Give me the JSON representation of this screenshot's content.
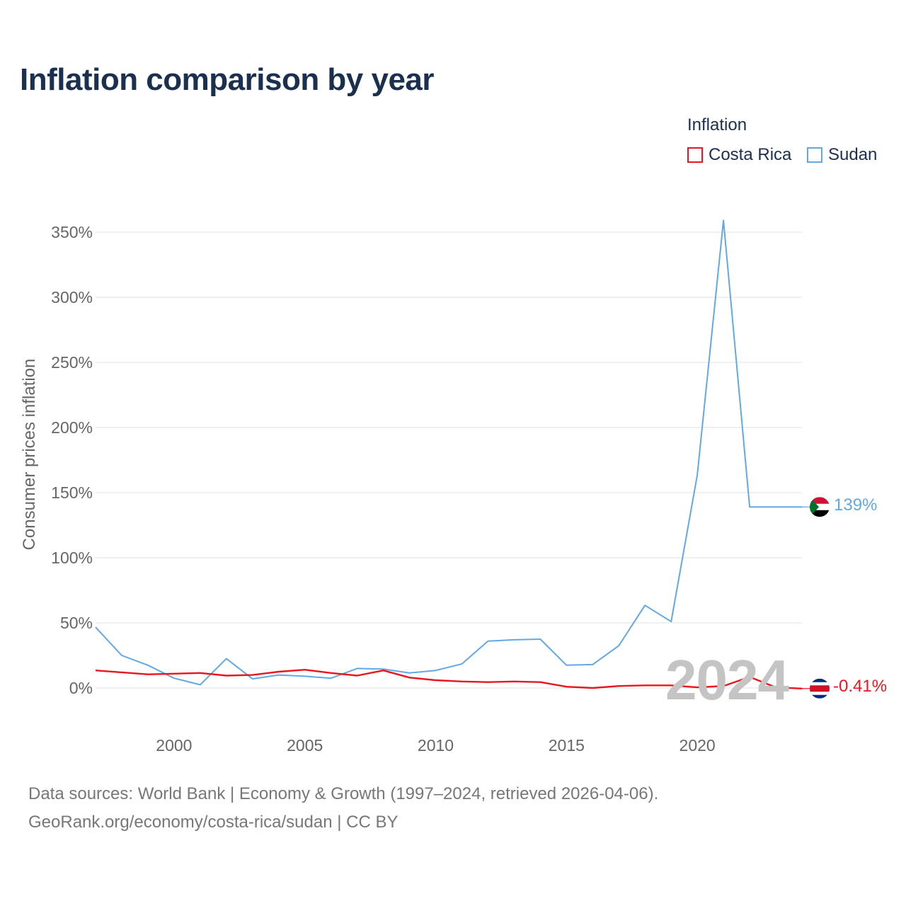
{
  "title": "Inflation comparison by year",
  "legend": {
    "title": "Inflation",
    "items": [
      {
        "label": "Costa Rica",
        "color": "#e8171f"
      },
      {
        "label": "Sudan",
        "color": "#62a8e5"
      }
    ]
  },
  "current_year": "2024",
  "end_labels": {
    "sudan": "139%",
    "costa_rica": "-0.41%"
  },
  "source": {
    "line1": "Data sources: World Bank | Economy & Growth (1997–2024, retrieved 2026-04-06).",
    "line2": "GeoRank.org/economy/costa-rica/sudan | CC BY"
  },
  "chart_data": {
    "type": "line",
    "title": "Inflation comparison by year",
    "ylabel": "Consumer prices inflation",
    "xlabel": "",
    "xlim": [
      1997,
      2024
    ],
    "ylim": [
      -10,
      370
    ],
    "x_ticks": [
      2000,
      2005,
      2010,
      2015,
      2020
    ],
    "y_ticks": [
      0,
      50,
      100,
      150,
      200,
      250,
      300,
      350
    ],
    "y_tick_labels": [
      "0%",
      "50%",
      "100%",
      "150%",
      "200%",
      "250%",
      "300%",
      "350%"
    ],
    "x": [
      1997,
      1998,
      1999,
      2000,
      2001,
      2002,
      2003,
      2004,
      2005,
      2006,
      2007,
      2008,
      2009,
      2010,
      2011,
      2012,
      2013,
      2014,
      2015,
      2016,
      2017,
      2018,
      2019,
      2020,
      2021,
      2022,
      2023,
      2024
    ],
    "series": [
      {
        "name": "Sudan",
        "color": "#62a8e5",
        "values": [
          46.7,
          25.0,
          17.5,
          7.5,
          2.5,
          22.5,
          7.0,
          10.0,
          9.0,
          7.5,
          15.0,
          14.5,
          11.5,
          13.5,
          18.5,
          36.0,
          37.0,
          37.5,
          17.5,
          18.0,
          32.5,
          63.5,
          51.0,
          163.5,
          359.0,
          139.0,
          139.0,
          139.0
        ]
      },
      {
        "name": "Costa Rica",
        "color": "#e8171f",
        "values": [
          13.5,
          12.0,
          10.5,
          11.0,
          11.5,
          9.5,
          10.0,
          12.5,
          14.0,
          11.5,
          9.5,
          13.5,
          8.0,
          6.0,
          5.0,
          4.5,
          5.0,
          4.5,
          1.0,
          0.0,
          1.5,
          2.0,
          2.0,
          0.5,
          1.5,
          8.5,
          0.5,
          -0.41
        ]
      }
    ]
  }
}
